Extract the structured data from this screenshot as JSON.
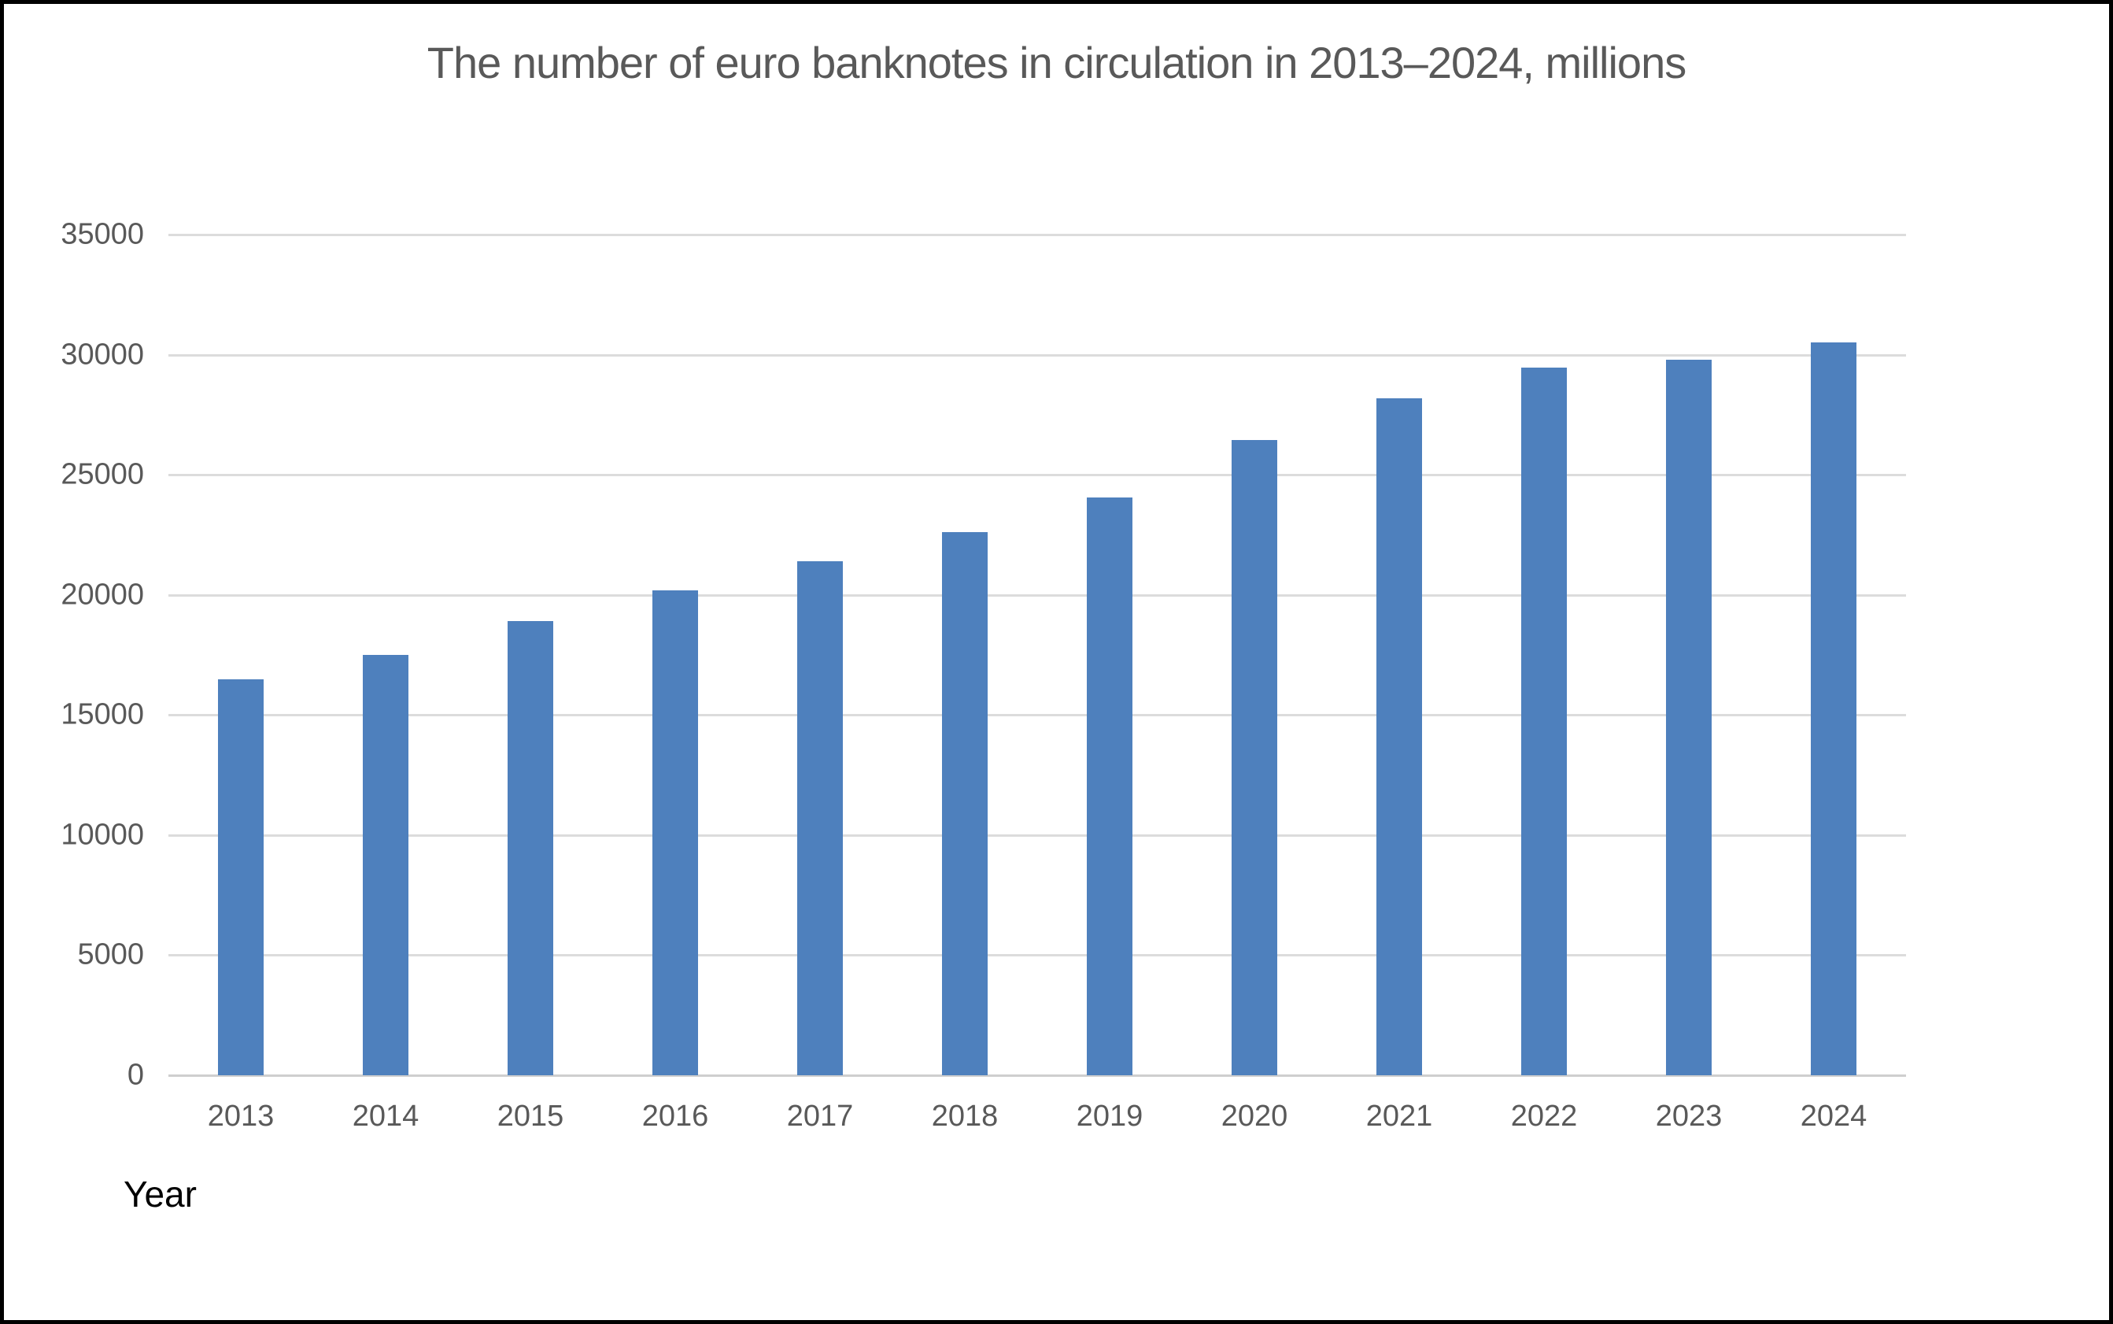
{
  "window": {
    "background_color": "#ffffff",
    "frame_border_color": "#000000"
  },
  "chart_data": {
    "type": "bar",
    "title": "The number of euro banknotes in circulation in 2013–2024, millions",
    "xlabel": "Year",
    "ylabel": "",
    "categories": [
      "2013",
      "2014",
      "2015",
      "2016",
      "2017",
      "2018",
      "2019",
      "2020",
      "2021",
      "2022",
      "2023",
      "2024"
    ],
    "values": [
      16500,
      17500,
      18900,
      20200,
      21400,
      22600,
      24050,
      26450,
      28200,
      29450,
      29800,
      30500
    ],
    "ylim": [
      0,
      35000
    ],
    "y_ticks": [
      0,
      5000,
      10000,
      15000,
      20000,
      25000,
      30000,
      35000
    ],
    "grid": true,
    "legend": false,
    "bar_color": "#4e80bd",
    "gridline_color": "#dcdcdc",
    "axis_line_color": "#cfcfcf",
    "tick_label_color": "#595959",
    "title_color": "#595959",
    "xlabel_color": "#000000"
  }
}
